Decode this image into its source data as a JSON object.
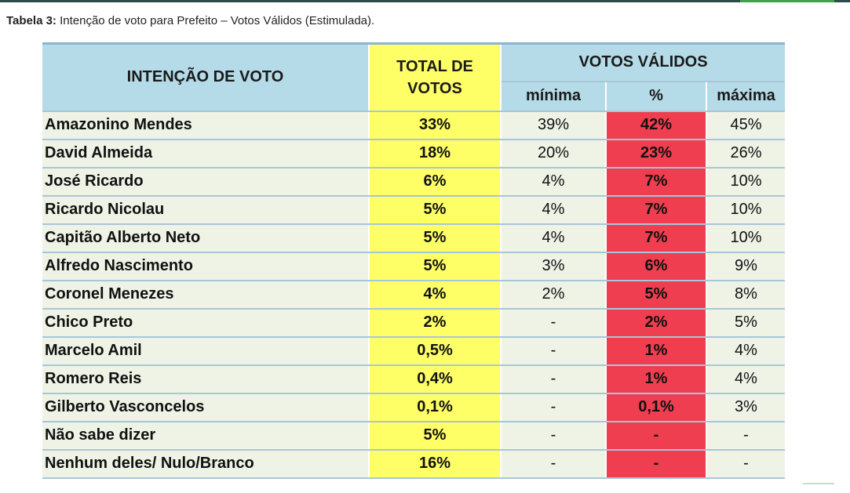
{
  "caption": {
    "label": "Tabela 3:",
    "text": "Intenção de voto para Prefeito – Votos Válidos (Estimulada)."
  },
  "table": {
    "header": {
      "name_col": "INTENÇÃO DE VOTO",
      "total_line1": "TOTAL DE",
      "total_line2": "VOTOS",
      "valid_group": "VOTOS VÁLIDOS",
      "min": "mínima",
      "pct": "%",
      "max": "máxima"
    },
    "rows": [
      {
        "name": "Amazonino Mendes",
        "total": "33%",
        "min": "39%",
        "pct": "42%",
        "max": "45%"
      },
      {
        "name": "David Almeida",
        "total": "18%",
        "min": "20%",
        "pct": "23%",
        "max": "26%"
      },
      {
        "name": "José Ricardo",
        "total": "6%",
        "min": "4%",
        "pct": "7%",
        "max": "10%"
      },
      {
        "name": "Ricardo Nicolau",
        "total": "5%",
        "min": "4%",
        "pct": "7%",
        "max": "10%"
      },
      {
        "name": "Capitão Alberto Neto",
        "total": "5%",
        "min": "4%",
        "pct": "7%",
        "max": "10%"
      },
      {
        "name": "Alfredo Nascimento",
        "total": "5%",
        "min": "3%",
        "pct": "6%",
        "max": "9%"
      },
      {
        "name": "Coronel Menezes",
        "total": "4%",
        "min": "2%",
        "pct": "5%",
        "max": "8%"
      },
      {
        "name": "Chico Preto",
        "total": "2%",
        "min": "-",
        "pct": "2%",
        "max": "5%"
      },
      {
        "name": "Marcelo Amil",
        "total": "0,5%",
        "min": "-",
        "pct": "1%",
        "max": "4%"
      },
      {
        "name": "Romero Reis",
        "total": "0,4%",
        "min": "-",
        "pct": "1%",
        "max": "4%"
      },
      {
        "name": "Gilberto Vasconcelos",
        "total": "0,1%",
        "min": "-",
        "pct": "0,1%",
        "max": "3%"
      },
      {
        "name": "Não sabe dizer",
        "total": "5%",
        "min": "-",
        "pct": "-",
        "max": "-"
      },
      {
        "name": "Nenhum deles/ Nulo/Branco",
        "total": "16%",
        "min": "-",
        "pct": "-",
        "max": "-"
      }
    ]
  },
  "colors": {
    "header_bg": "#b5dbe8",
    "total_col_bg": "#fefe66",
    "pct_col_bg": "#ee3e4f",
    "row_bg": "#eef3e6"
  }
}
